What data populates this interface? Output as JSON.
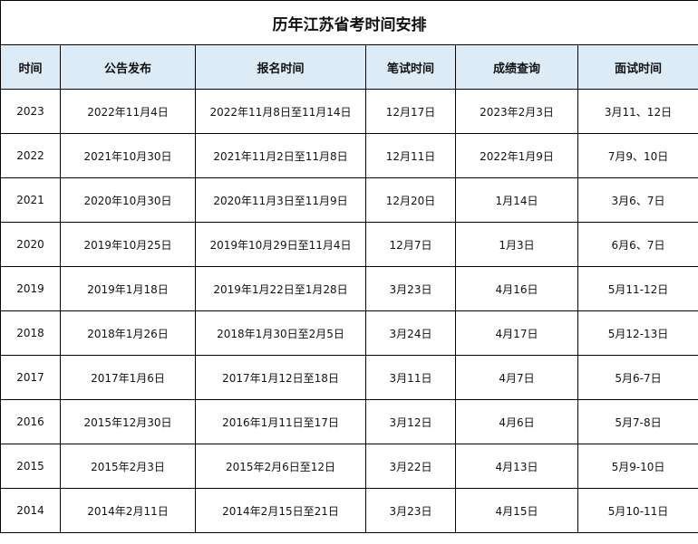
{
  "title": "历年江苏省考时间安排",
  "headers": [
    "时间",
    "公告发布",
    "报名时间",
    "笔试时间",
    "成绩查询",
    "面试时间"
  ],
  "rows": [
    [
      "2023",
      "2022年11月4日",
      "2022年11月8日至11月14日",
      "12月17日",
      "2023年2月3日",
      "3月11、12日"
    ],
    [
      "2022",
      "2021年10月30日",
      "2021年11月2日至11月8日",
      "12月11日",
      "2022年1月9日",
      "7月9、10日"
    ],
    [
      "2021",
      "2020年10月30日",
      "2020年11月3日至11月9日",
      "12月20日",
      "1月14日",
      "3月6、7日"
    ],
    [
      "2020",
      "2019年10月25日",
      "2019年10月29日至11月4日",
      "12月7日",
      "1月3日",
      "6月6、7日"
    ],
    [
      "2019",
      "2019年1月18日",
      "2019年1月22日至1月28日",
      "3月23日",
      "4月16日",
      "5月11-12日"
    ],
    [
      "2018",
      "2018年1月26日",
      "2018年1月30日至2月5日",
      "3月24日",
      "4月17日",
      "5月12-13日"
    ],
    [
      "2017",
      "2017年1月6日",
      "2017年1月12日至18日",
      "3月11日",
      "4月7日",
      "5月6-7日"
    ],
    [
      "2016",
      "2015年12月30日",
      "2016年1月11日至17日",
      "3月12日",
      "4月6日",
      "5月7-8日"
    ],
    [
      "2015",
      "2015年2月3日",
      "2015年2月6日至12日",
      "3月22日",
      "4月13日",
      "5月9-10日"
    ],
    [
      "2014",
      "2014年2月11日",
      "2014年2月15日至21日",
      "3月23日",
      "4月15日",
      "5月10-11日"
    ]
  ]
}
